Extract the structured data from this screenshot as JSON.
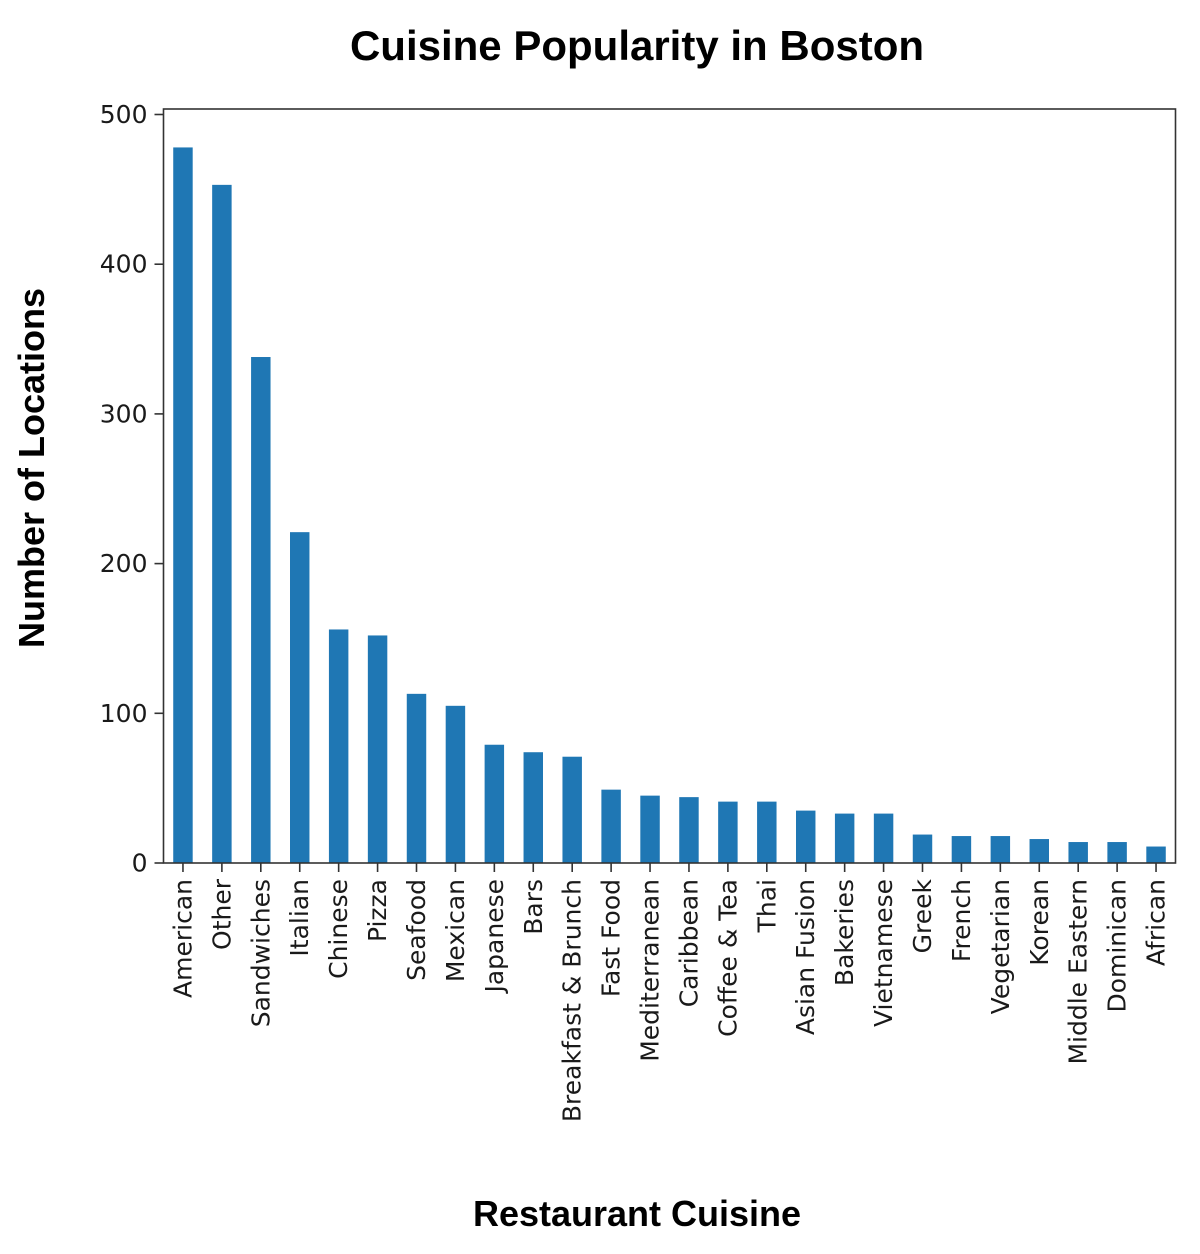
{
  "chart_data": {
    "type": "bar",
    "title": "Cuisine Popularity in Boston",
    "xlabel": "Restaurant Cuisine",
    "ylabel": "Number of Locations",
    "categories": [
      "American",
      "Other",
      "Sandwiches",
      "Italian",
      "Chinese",
      "Pizza",
      "Seafood",
      "Mexican",
      "Japanese",
      "Bars",
      "Breakfast & Brunch",
      "Fast Food",
      "Mediterranean",
      "Caribbean",
      "Coffee & Tea",
      "Thai",
      "Asian Fusion",
      "Bakeries",
      "Vietnamese",
      "Greek",
      "French",
      "Vegetarian",
      "Korean",
      "Middle Eastern",
      "Dominican",
      "African"
    ],
    "values": [
      478,
      453,
      338,
      221,
      156,
      152,
      113,
      105,
      79,
      74,
      71,
      49,
      45,
      44,
      41,
      41,
      35,
      33,
      33,
      19,
      18,
      18,
      16,
      14,
      14,
      11
    ],
    "ylim": [
      0,
      500
    ],
    "yticks": [
      0,
      100,
      200,
      300,
      400,
      500
    ],
    "grid": false,
    "bar_color": "#1f77b4"
  }
}
